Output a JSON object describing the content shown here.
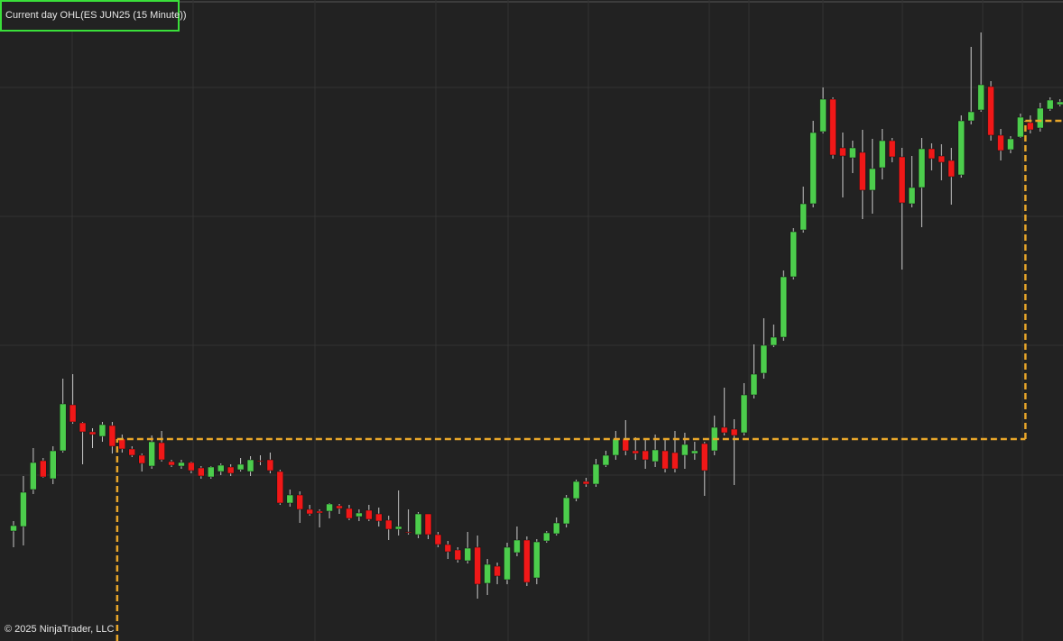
{
  "chart_data": {
    "type": "candlestick",
    "title": "Current day OHL(ES JUN25 (15 Minute))",
    "footer": "© 2025 NinjaTrader, LLC",
    "up_color": "#4ccd4c",
    "down_color": "#f01818",
    "wick_color": "#c8c8c8",
    "ylim": [
      0,
      711
    ],
    "open": [
      122,
      127,
      168,
      200,
      180,
      211,
      262,
      242,
      232,
      227,
      239,
      224,
      213,
      206,
      194,
      220,
      199,
      194,
      198,
      192,
      182,
      188,
      193,
      190,
      188,
      200,
      201,
      188,
      153,
      162,
      146,
      144,
      144,
      150,
      147,
      138,
      145,
      141,
      134,
      124,
      121,
      118,
      141,
      118,
      107,
      101,
      89,
      104,
      64,
      83,
      68,
      98,
      112,
      70,
      111,
      119,
      130,
      158,
      177,
      174,
      195,
      206,
      224,
      211,
      211,
      199,
      211,
      209,
      206,
      208,
      219,
      211,
      237,
      235,
      231,
      273,
      297,
      328,
      337,
      404,
      456,
      485,
      565,
      601,
      547,
      536,
      542,
      500,
      525,
      555,
      537,
      485,
      503,
      546,
      538,
      533,
      517,
      577,
      589,
      615,
      561,
      545,
      559,
      575,
      569,
      590,
      595
    ],
    "high": [
      133,
      183,
      214,
      203,
      216,
      291,
      296,
      243,
      236,
      243,
      243,
      229,
      216,
      208,
      228,
      233,
      201,
      201,
      199,
      194,
      194,
      197,
      196,
      203,
      205,
      206,
      209,
      190,
      168,
      166,
      151,
      146,
      153,
      152,
      151,
      146,
      151,
      148,
      139,
      167,
      146,
      143,
      141,
      121,
      111,
      104,
      121,
      117,
      91,
      87,
      109,
      127,
      116,
      113,
      122,
      137,
      162,
      179,
      181,
      202,
      211,
      233,
      245,
      226,
      223,
      229,
      225,
      233,
      231,
      221,
      221,
      250,
      281,
      246,
      286,
      329,
      358,
      351,
      411,
      458,
      504,
      577,
      614,
      603,
      564,
      555,
      567,
      557,
      568,
      558,
      547,
      538,
      558,
      552,
      551,
      547,
      583,
      659,
      675,
      621,
      568,
      560,
      585,
      583,
      597,
      603,
      601
    ],
    "low": [
      104,
      106,
      163,
      181,
      174,
      209,
      241,
      196,
      214,
      221,
      208,
      209,
      204,
      188,
      191,
      199,
      193,
      191,
      186,
      180,
      180,
      184,
      183,
      188,
      183,
      195,
      186,
      151,
      149,
      131,
      139,
      126,
      136,
      141,
      134,
      133,
      133,
      127,
      112,
      117,
      118,
      114,
      113,
      104,
      91,
      87,
      86,
      47,
      51,
      63,
      63,
      94,
      61,
      63,
      109,
      117,
      126,
      155,
      171,
      171,
      193,
      201,
      206,
      201,
      191,
      193,
      187,
      187,
      191,
      201,
      161,
      206,
      228,
      173,
      228,
      269,
      291,
      326,
      333,
      401,
      453,
      481,
      563,
      535,
      492,
      519,
      468,
      474,
      512,
      531,
      412,
      481,
      459,
      522,
      511,
      484,
      514,
      573,
      587,
      555,
      533,
      541,
      558,
      563,
      565,
      588,
      593
    ],
    "close": [
      128,
      165,
      198,
      182,
      211,
      263,
      243,
      232,
      229,
      240,
      216,
      213,
      206,
      197,
      221,
      201,
      195,
      198,
      189,
      183,
      193,
      195,
      186,
      196,
      201,
      199,
      189,
      153,
      162,
      146,
      141,
      142,
      152,
      147,
      136,
      142,
      135,
      133,
      124,
      127,
      120,
      141,
      118,
      107,
      99,
      90,
      103,
      63,
      85,
      72,
      104,
      112,
      65,
      110,
      120,
      131,
      159,
      177,
      174,
      196,
      206,
      224,
      211,
      208,
      201,
      212,
      191,
      191,
      218,
      211,
      189,
      237,
      231,
      228,
      273,
      296,
      328,
      337,
      404,
      454,
      485,
      564,
      601,
      539,
      538,
      547,
      500,
      524,
      555,
      537,
      486,
      503,
      546,
      535,
      531,
      515,
      577,
      587,
      617,
      561,
      544,
      557,
      581,
      567,
      591,
      600,
      598
    ],
    "level_line": {
      "color": "#e8a62a",
      "steps": [
        {
          "start": 11,
          "value": 224
        },
        {
          "start": 103,
          "value": 577
        }
      ]
    }
  }
}
